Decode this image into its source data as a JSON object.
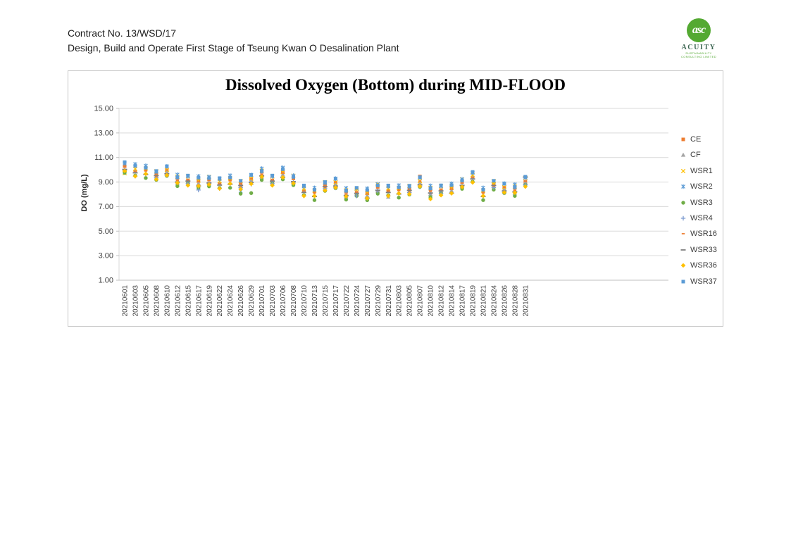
{
  "page": {
    "header": {
      "line1": "Contract No. 13/WSD/17",
      "line2": "Design, Build and Operate First Stage of Tseung Kwan O Desalination Plant"
    },
    "logo": {
      "monogram": "asc",
      "name": "ACUITY",
      "tagline1": "SUSTAINABILITY",
      "tagline2": "CONSULTING LIMITED",
      "brand_color": "#54A932"
    }
  },
  "chart_data": {
    "type": "scatter",
    "title": "Dissolved Oxygen (Bottom) during MID-FLOOD",
    "xlabel": "",
    "ylabel": "DO (mg/L)",
    "ylim": [
      1,
      15
    ],
    "yticks": [
      15,
      13,
      11,
      9,
      7,
      5,
      3,
      1
    ],
    "grid": "horizontal",
    "gridline_color": "#D9D9D9",
    "axis_color": "#BFBFBF",
    "legend_position": "right",
    "categories": [
      "20210601",
      "20210603",
      "20210605",
      "20210608",
      "20210610",
      "20210612",
      "20210615",
      "20210617",
      "20210619",
      "20210622",
      "20210624",
      "20210626",
      "20210629",
      "20210701",
      "20210703",
      "20210706",
      "20210708",
      "20210710",
      "20210713",
      "20210715",
      "20210717",
      "20210722",
      "20210724",
      "20210727",
      "20210729",
      "20210731",
      "20210803",
      "20210805",
      "20210807",
      "20210810",
      "20210812",
      "20210814",
      "20210817",
      "20210819",
      "20210821",
      "20210824",
      "20210826",
      "20210828",
      "20210831"
    ],
    "series": [
      {
        "name": "CE",
        "marker": "square",
        "color": "#ED7D31",
        "values": [
          10.3,
          9.87,
          10.07,
          9.62,
          9.95,
          9.33,
          9.13,
          9.08,
          9.2,
          8.87,
          9.27,
          8.82,
          9.25,
          9.83,
          9.13,
          9.78,
          9.3,
          8.27,
          8.27,
          8.72,
          8.95,
          8.23,
          8.13,
          8.08,
          8.6,
          8.27,
          8.47,
          8.42,
          9.45,
          8.43,
          8.33,
          8.48,
          9.0,
          9.37,
          8.27,
          8.82,
          8.55,
          8.53,
          9.03
        ]
      },
      {
        "name": "CF",
        "marker": "triangle",
        "color": "#A5A5A5",
        "values": [
          9.97,
          9.87,
          9.72,
          9.45,
          9.83,
          8.93,
          9.08,
          8.9,
          8.87,
          8.87,
          8.92,
          8.65,
          9.13,
          9.43,
          9.08,
          9.6,
          8.97,
          8.27,
          7.92,
          8.55,
          8.83,
          7.83,
          8.08,
          7.9,
          8.27,
          7.8,
          8.12,
          8.25,
          8.93,
          8.03,
          8.28,
          8.3,
          8.67,
          9.37,
          7.92,
          8.65,
          8.43,
          8.13,
          8.98
        ]
      },
      {
        "name": "WSR1",
        "marker": "x",
        "color": "#FFC000",
        "values": [
          9.72,
          10.07,
          10.1,
          9.88,
          9.98,
          9.43,
          9.45,
          9.12,
          9.42,
          9.07,
          9.3,
          9.08,
          9.28,
          9.93,
          9.45,
          9.82,
          9.52,
          8.47,
          8.3,
          8.98,
          8.98,
          8.33,
          8.45,
          8.12,
          8.82,
          8.47,
          8.5,
          8.68,
          9.08,
          8.53,
          8.65,
          8.52,
          9.22,
          9.57,
          8.3,
          9.08,
          8.58,
          8.63,
          9.35
        ]
      },
      {
        "name": "WSR2",
        "marker": "star",
        "color": "#5B9BD5",
        "values": [
          10.52,
          10.45,
          10.33,
          9.83,
          10.28,
          9.6,
          9.47,
          9.47,
          9.42,
          9.25,
          9.53,
          8.25,
          9.58,
          10.1,
          9.47,
          10.17,
          9.52,
          8.65,
          8.53,
          8.93,
          9.28,
          8.5,
          8.47,
          8.47,
          8.82,
          8.65,
          8.73,
          8.63,
          9.38,
          8.7,
          8.67,
          8.87,
          9.22,
          9.75,
          8.53,
          9.03,
          8.88,
          8.8,
          9.37
        ]
      },
      {
        "name": "WSR3",
        "marker": "circle",
        "color": "#70AD47",
        "values": [
          9.75,
          9.53,
          9.33,
          9.18,
          9.5,
          8.67,
          8.87,
          8.52,
          8.65,
          8.53,
          8.53,
          8.05,
          8.1,
          9.17,
          8.87,
          9.22,
          8.75,
          7.93,
          7.53,
          8.28,
          8.5,
          7.57,
          7.87,
          7.52,
          8.05,
          7.93,
          7.73,
          7.98,
          8.6,
          7.77,
          8.07,
          8.75,
          8.45,
          9.03,
          7.53,
          8.38,
          8.1,
          7.87,
          8.77
        ]
      },
      {
        "name": "WSR4",
        "marker": "plus",
        "color": "#7C9BD0",
        "values": [
          9.98,
          9.48,
          9.63,
          9.35,
          9.52,
          9.02,
          8.87,
          8.35,
          8.88,
          8.48,
          8.83,
          8.55,
          8.82,
          9.52,
          8.87,
          9.4,
          8.98,
          7.88,
          7.83,
          8.45,
          8.52,
          7.92,
          7.87,
          7.7,
          8.28,
          7.88,
          8.03,
          8.15,
          8.62,
          8.12,
          8.07,
          8.1,
          8.68,
          8.98,
          7.83,
          8.55,
          8.12,
          8.22,
          8.77
        ]
      },
      {
        "name": "WSR16",
        "marker": "dash-short",
        "color": "#ED7D31",
        "values": [
          10.03,
          9.88,
          9.9,
          9.47,
          9.97,
          9.12,
          9.15,
          9.03,
          8.93,
          8.88,
          9.1,
          8.67,
          9.27,
          9.62,
          9.15,
          9.73,
          9.03,
          8.28,
          8.1,
          8.57,
          8.97,
          8.02,
          8.15,
          8.03,
          8.33,
          8.28,
          8.3,
          8.27,
          9.07,
          8.22,
          8.35,
          8.43,
          8.73,
          9.38,
          8.1,
          8.67,
          8.57,
          8.32,
          9.05
        ]
      },
      {
        "name": "WSR33",
        "marker": "dash",
        "color": "#7F7F7F",
        "values": [
          10.03,
          9.75,
          9.62,
          9.52,
          9.67,
          9.0,
          9.08,
          8.68,
          8.93,
          8.75,
          8.82,
          8.72,
          8.97,
          9.5,
          9.08,
          9.38,
          9.03,
          8.15,
          7.82,
          8.62,
          8.67,
          7.9,
          8.08,
          7.68,
          8.33,
          8.15,
          8.02,
          8.32,
          8.77,
          8.1,
          8.28,
          8.08,
          8.73,
          9.25,
          7.82,
          8.72,
          8.27,
          8.2,
          9.4
        ]
      },
      {
        "name": "WSR36",
        "marker": "diamond",
        "color": "#FFC000",
        "values": [
          9.9,
          9.47,
          9.67,
          9.22,
          9.55,
          8.93,
          8.73,
          8.68,
          8.8,
          8.47,
          8.87,
          8.42,
          8.85,
          9.43,
          8.73,
          9.38,
          8.9,
          7.87,
          7.87,
          8.32,
          8.55,
          7.83,
          8.45,
          7.68,
          8.75,
          7.87,
          8.07,
          8.02,
          8.65,
          7.62,
          7.93,
          8.08,
          8.6,
          8.97,
          7.87,
          8.95,
          8.15,
          8.13,
          8.63
        ]
      },
      {
        "name": "WSR37",
        "marker": "square",
        "color": "#5B9BD5",
        "values": [
          10.62,
          10.32,
          10.17,
          9.9,
          10.28,
          9.38,
          9.53,
          9.35,
          9.32,
          9.32,
          9.37,
          9.1,
          9.58,
          9.88,
          9.53,
          10.05,
          9.42,
          8.72,
          8.37,
          9.0,
          9.28,
          8.28,
          8.53,
          8.35,
          8.72,
          8.72,
          8.57,
          8.7,
          9.38,
          8.48,
          8.73,
          8.75,
          9.12,
          9.82,
          8.37,
          9.1,
          8.88,
          8.58,
          9.43
        ]
      }
    ]
  }
}
